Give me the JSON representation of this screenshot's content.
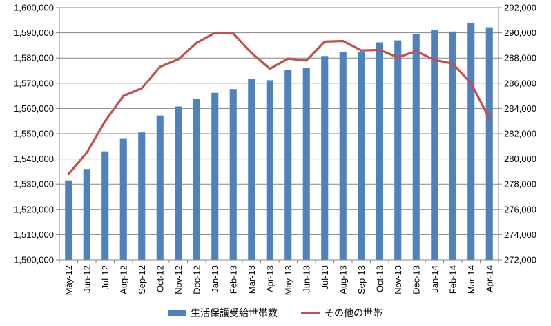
{
  "chart_data": {
    "type": "bar+line",
    "categories": [
      "May-12",
      "Jun-12",
      "Jul-12",
      "Aug-12",
      "Sep-12",
      "Oct-12",
      "Nov-12",
      "Dec-12",
      "Jan-13",
      "Feb-13",
      "Mar-13",
      "Apr-13",
      "May-13",
      "Jun-13",
      "Jul-13",
      "Aug-13",
      "Sep-13",
      "Oct-13",
      "Nov-13",
      "Dec-13",
      "Jan-14",
      "Feb-14",
      "Mar-14",
      "Apr-14"
    ],
    "series": [
      {
        "name": "生活保護受給世帯数",
        "type": "bar",
        "axis": "left",
        "color": "#4f81bd",
        "values": [
          1531500,
          1536000,
          1543000,
          1548200,
          1550500,
          1557200,
          1560800,
          1563800,
          1566200,
          1567700,
          1571800,
          1571200,
          1575200,
          1576000,
          1580800,
          1582300,
          1582500,
          1586200,
          1587000,
          1589500,
          1591000,
          1590500,
          1594000,
          1592200
        ]
      },
      {
        "name": "その他の世帯",
        "type": "line",
        "axis": "right",
        "color": "#c0504d",
        "values": [
          278800,
          280500,
          283000,
          285000,
          285600,
          287300,
          287900,
          289200,
          290000,
          289950,
          288400,
          287150,
          287950,
          287800,
          289300,
          289350,
          288600,
          288650,
          288050,
          288550,
          287850,
          287550,
          286000,
          283200
        ]
      }
    ],
    "y_left": {
      "min": 1500000,
      "max": 1600000,
      "ticks": [
        "1,500,000",
        "1,510,000",
        "1,520,000",
        "1,530,000",
        "1,540,000",
        "1,550,000",
        "1,560,000",
        "1,570,000",
        "1,580,000",
        "1,590,000",
        "1,600,000"
      ]
    },
    "y_right": {
      "min": 272000,
      "max": 292000,
      "ticks": [
        "272,000",
        "274,000",
        "276,000",
        "278,000",
        "280,000",
        "282,000",
        "284,000",
        "286,000",
        "288,000",
        "290,000",
        "292,000"
      ]
    },
    "grid": true,
    "legend_position": "bottom"
  }
}
